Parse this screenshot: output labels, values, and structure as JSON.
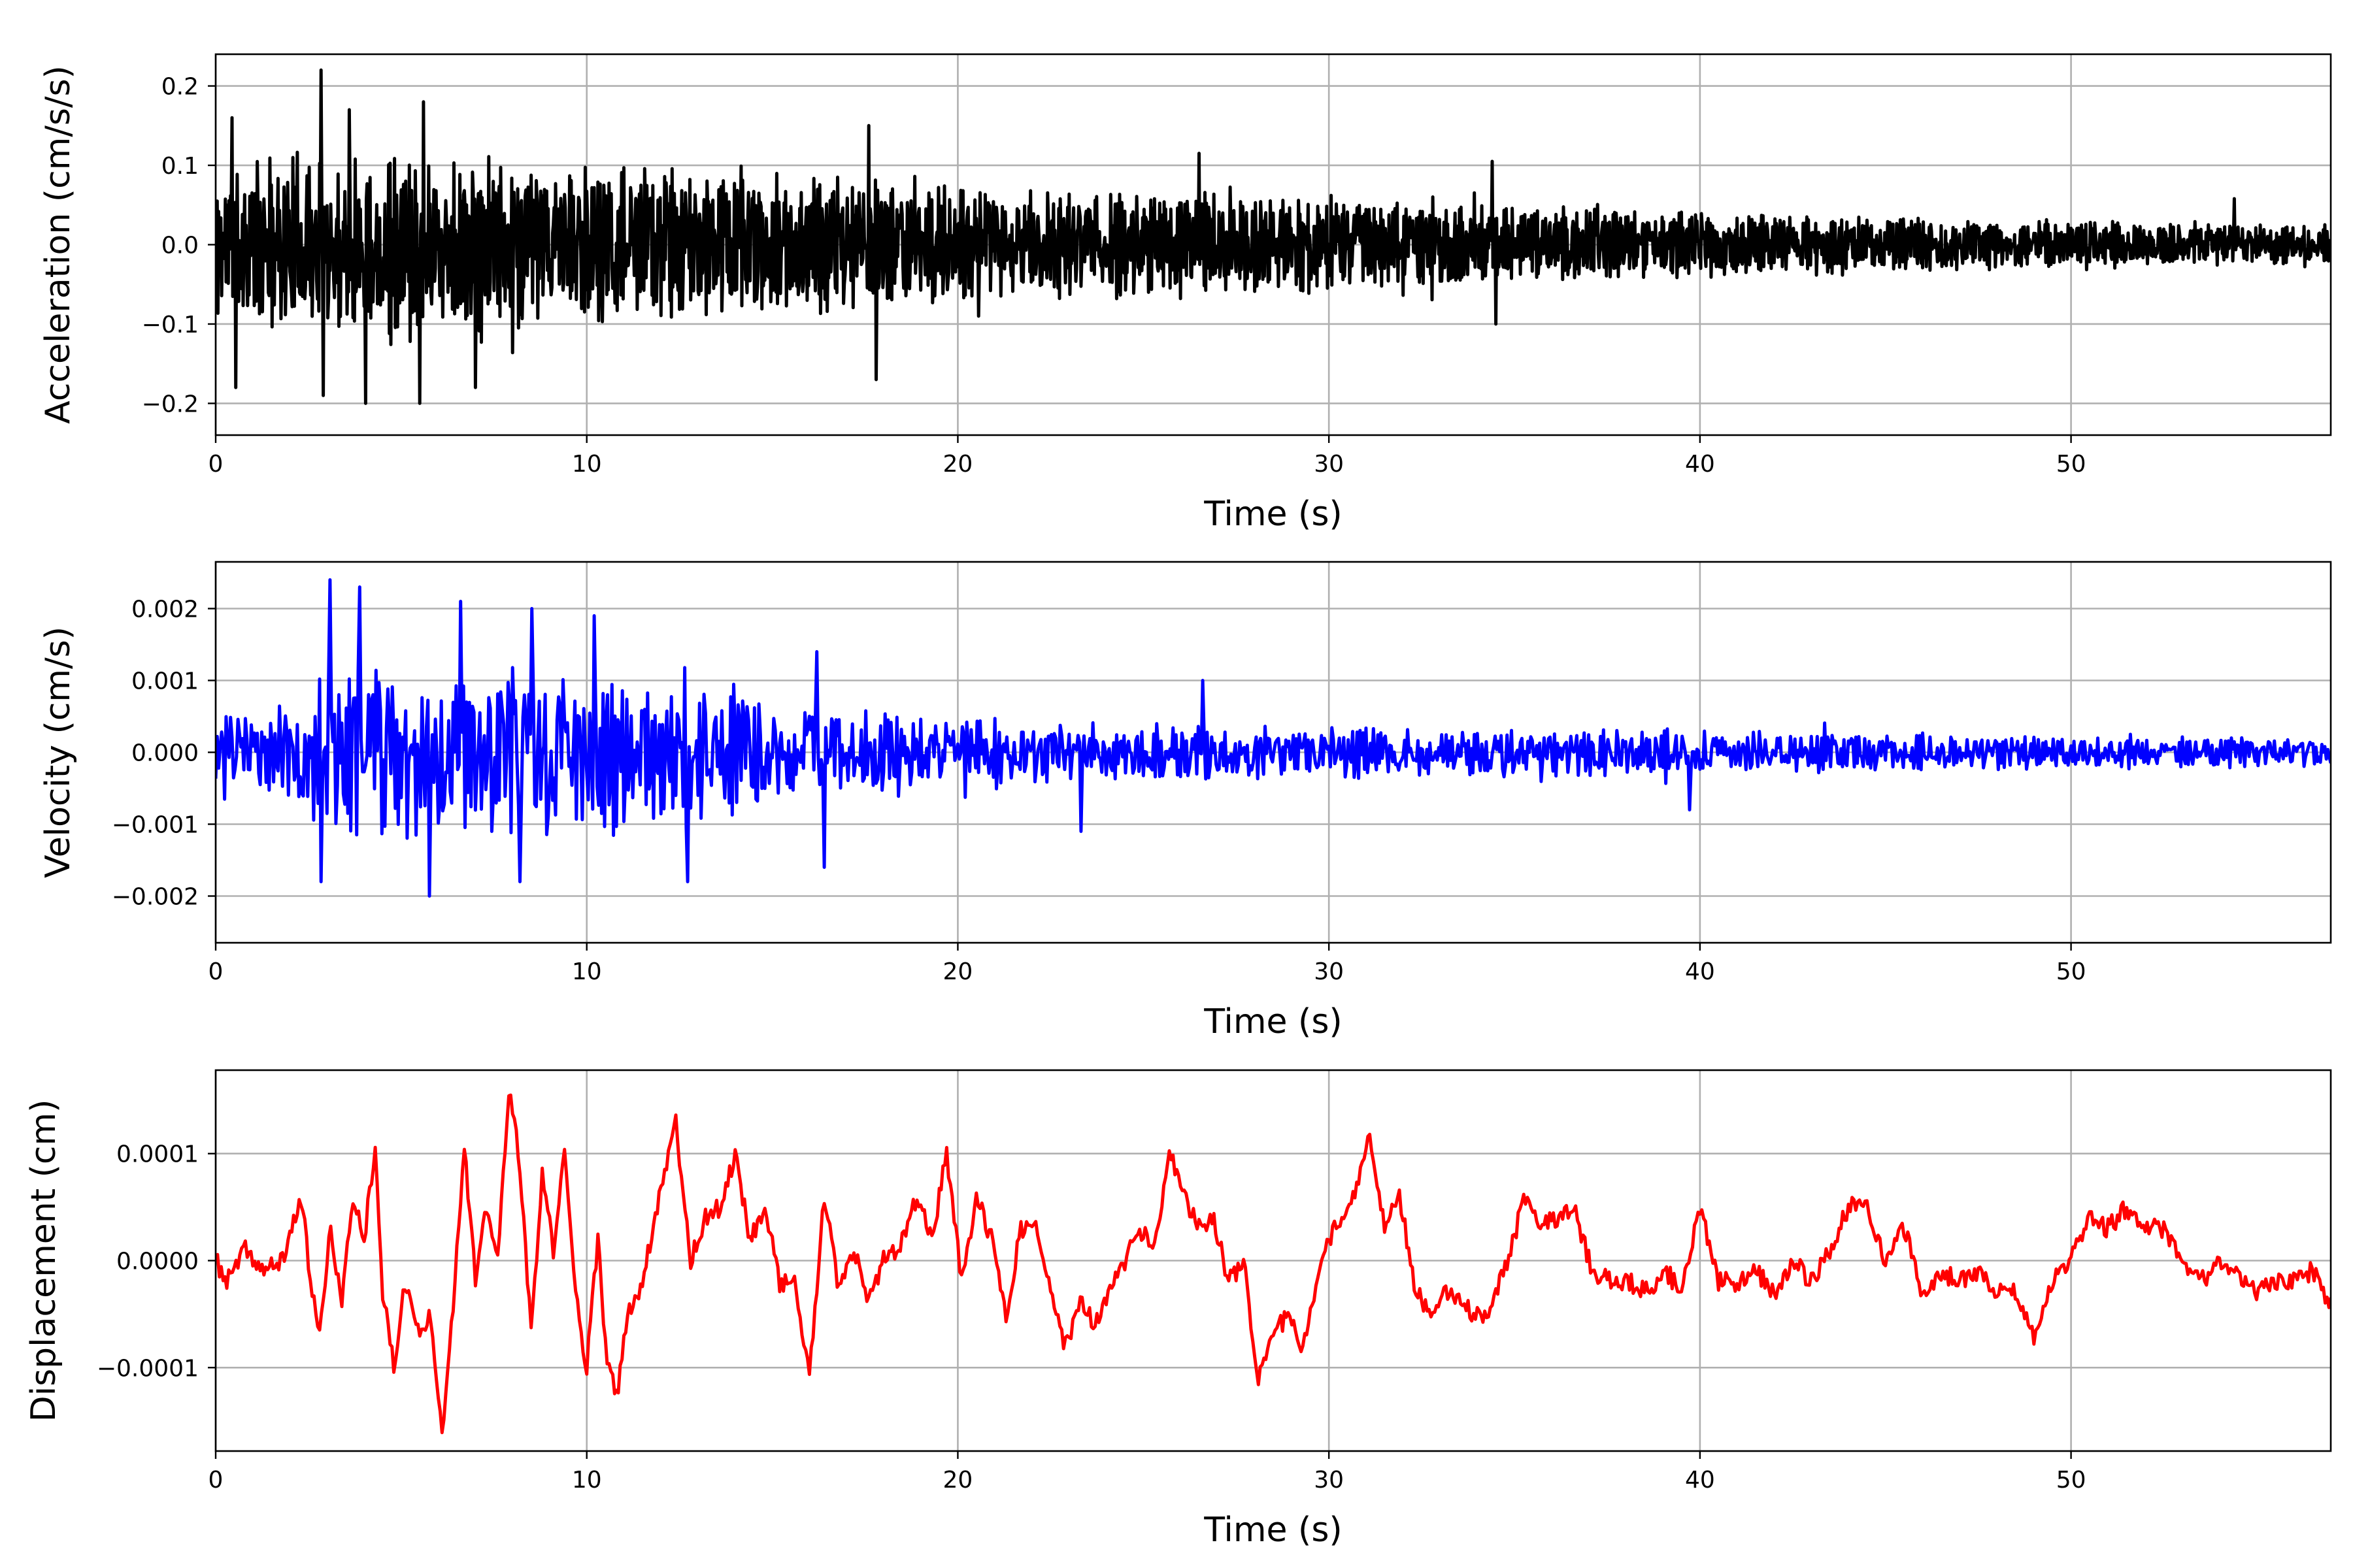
{
  "chart_data": [
    {
      "type": "line",
      "title": "",
      "xlabel": "Time (s)",
      "ylabel": "Acceleration (cm/s/s)",
      "xlim": [
        0,
        57
      ],
      "ylim": [
        -0.24,
        0.24
      ],
      "xticks": [
        0,
        10,
        20,
        30,
        40,
        50
      ],
      "xtick_labels": [
        "0",
        "10",
        "20",
        "30",
        "40",
        "50"
      ],
      "yticks": [
        -0.2,
        -0.1,
        0.0,
        0.1,
        0.2
      ],
      "ytick_labels": [
        "−0.2",
        "−0.1",
        "0.0",
        "0.1",
        "0.2"
      ],
      "grid": true,
      "series": [
        {
          "color": "#000000",
          "seed": 11,
          "sampling_dt": 0.02,
          "envelope": {
            "t": [
              0,
              2,
              4,
              6,
              10,
              15,
              20,
              25,
              30,
              35,
              40,
              45,
              50,
              55,
              57
            ],
            "amp": [
              0.085,
              0.095,
              0.1,
              0.095,
              0.085,
              0.075,
              0.065,
              0.058,
              0.05,
              0.04,
              0.034,
              0.03,
              0.025,
              0.023,
              0.022
            ]
          },
          "peaks": [
            {
              "t": 2.85,
              "v": 0.22
            },
            {
              "t": 3.6,
              "v": 0.17
            },
            {
              "t": 5.6,
              "v": 0.18
            },
            {
              "t": 0.45,
              "v": 0.16
            },
            {
              "t": 17.6,
              "v": 0.15
            },
            {
              "t": 26.5,
              "v": 0.115
            },
            {
              "t": 34.4,
              "v": 0.105
            },
            {
              "t": 54.4,
              "v": 0.058
            },
            {
              "t": 4.05,
              "v": -0.2
            },
            {
              "t": 5.5,
              "v": -0.2
            },
            {
              "t": 2.9,
              "v": -0.19
            },
            {
              "t": 0.55,
              "v": -0.18
            },
            {
              "t": 7.0,
              "v": -0.18
            },
            {
              "t": 17.8,
              "v": -0.17
            },
            {
              "t": 34.5,
              "v": -0.1
            }
          ]
        }
      ]
    },
    {
      "type": "line",
      "title": "",
      "xlabel": "Time (s)",
      "ylabel": "Velocity (cm/s)",
      "xlim": [
        0,
        57
      ],
      "ylim": [
        -0.00265,
        0.00265
      ],
      "xticks": [
        0,
        10,
        20,
        30,
        40,
        50
      ],
      "xtick_labels": [
        "0",
        "10",
        "20",
        "30",
        "40",
        "50"
      ],
      "yticks": [
        -0.002,
        -0.001,
        0.0,
        0.001,
        0.002
      ],
      "ytick_labels": [
        "−0.002",
        "−0.001",
        "0.000",
        "0.001",
        "0.002"
      ],
      "grid": true,
      "series": [
        {
          "color": "#0000ff",
          "seed": 23,
          "sampling_dt": 0.04,
          "envelope": {
            "t": [
              0,
              2,
              3,
              5,
              8,
              10,
              13,
              16,
              20,
              25,
              30,
              35,
              40,
              45,
              50,
              55,
              57
            ],
            "amp": [
              0.00045,
              0.0006,
              0.0011,
              0.0011,
              0.001,
              0.00095,
              0.0008,
              0.0006,
              0.0004,
              0.00035,
              0.0003,
              0.00028,
              0.00025,
              0.00022,
              0.0002,
              0.00018,
              0.00018
            ]
          },
          "peaks": [
            {
              "t": 3.1,
              "v": 0.0024
            },
            {
              "t": 3.9,
              "v": 0.0023
            },
            {
              "t": 6.6,
              "v": 0.0021
            },
            {
              "t": 8.5,
              "v": 0.002
            },
            {
              "t": 10.2,
              "v": 0.0019
            },
            {
              "t": 16.2,
              "v": 0.0014
            },
            {
              "t": 26.6,
              "v": 0.001
            },
            {
              "t": 5.75,
              "v": -0.002
            },
            {
              "t": 2.85,
              "v": -0.0018
            },
            {
              "t": 8.2,
              "v": -0.0018
            },
            {
              "t": 12.7,
              "v": -0.0018
            },
            {
              "t": 16.4,
              "v": -0.0016
            },
            {
              "t": 23.3,
              "v": -0.0011
            },
            {
              "t": 39.7,
              "v": -0.0008
            }
          ]
        }
      ]
    },
    {
      "type": "line",
      "title": "",
      "xlabel": "Time (s)",
      "ylabel": "Displacement (cm)",
      "xlim": [
        0,
        57
      ],
      "ylim": [
        -0.000178,
        0.000178
      ],
      "xticks": [
        0,
        10,
        20,
        30,
        40,
        50
      ],
      "xtick_labels": [
        "0",
        "10",
        "20",
        "30",
        "40",
        "50"
      ],
      "yticks": [
        -0.0001,
        0.0,
        0.0001
      ],
      "ytick_labels": [
        "−0.0001",
        "0.0000",
        "0.0001"
      ],
      "grid": true,
      "series": [
        {
          "color": "#ff0000",
          "points": [
            [
              0,
              0.0
            ],
            [
              0.3,
              -2e-05
            ],
            [
              0.8,
              1e-05
            ],
            [
              1.3,
              -1e-05
            ],
            [
              1.8,
              0.0
            ],
            [
              2.3,
              6e-05
            ],
            [
              2.6,
              -3e-05
            ],
            [
              2.8,
              -7e-05
            ],
            [
              3.1,
              3e-05
            ],
            [
              3.4,
              -4e-05
            ],
            [
              3.7,
              6e-05
            ],
            [
              4.0,
              2e-05
            ],
            [
              4.3,
              0.00011
            ],
            [
              4.5,
              -3e-05
            ],
            [
              4.8,
              -0.0001
            ],
            [
              5.1,
              -2e-05
            ],
            [
              5.5,
              -7e-05
            ],
            [
              5.8,
              -5e-05
            ],
            [
              6.1,
              -0.00016
            ],
            [
              6.4,
              -4e-05
            ],
            [
              6.7,
              0.00011
            ],
            [
              7.0,
              -2e-05
            ],
            [
              7.3,
              5e-05
            ],
            [
              7.6,
              0.0
            ],
            [
              7.9,
              0.00016
            ],
            [
              8.2,
              9e-05
            ],
            [
              8.5,
              -7e-05
            ],
            [
              8.8,
              8e-05
            ],
            [
              9.1,
              1e-05
            ],
            [
              9.4,
              0.0001
            ],
            [
              9.7,
              -3e-05
            ],
            [
              10.0,
              -0.0001
            ],
            [
              10.3,
              2e-05
            ],
            [
              10.5,
              -8e-05
            ],
            [
              10.8,
              -0.00013
            ],
            [
              11.1,
              -5e-05
            ],
            [
              11.5,
              -2e-05
            ],
            [
              12.0,
              7e-05
            ],
            [
              12.4,
              0.00013
            ],
            [
              12.8,
              0.0
            ],
            [
              13.2,
              4e-05
            ],
            [
              13.6,
              5e-05
            ],
            [
              14.0,
              0.0001
            ],
            [
              14.4,
              2e-05
            ],
            [
              14.8,
              5e-05
            ],
            [
              15.2,
              -2e-05
            ],
            [
              15.6,
              -2e-05
            ],
            [
              16.0,
              -0.00011
            ],
            [
              16.4,
              6e-05
            ],
            [
              16.8,
              -3e-05
            ],
            [
              17.2,
              1e-05
            ],
            [
              17.6,
              -4e-05
            ],
            [
              18.0,
              0.0
            ],
            [
              18.4,
              1e-05
            ],
            [
              18.9,
              6e-05
            ],
            [
              19.3,
              2e-05
            ],
            [
              19.7,
              0.0001
            ],
            [
              20.1,
              -2e-05
            ],
            [
              20.5,
              6e-05
            ],
            [
              20.9,
              2e-05
            ],
            [
              21.3,
              -5e-05
            ],
            [
              21.7,
              3e-05
            ],
            [
              22.1,
              3e-05
            ],
            [
              22.5,
              -3e-05
            ],
            [
              22.9,
              -8e-05
            ],
            [
              23.3,
              -4e-05
            ],
            [
              23.7,
              -6e-05
            ],
            [
              24.1,
              -3e-05
            ],
            [
              24.5,
              0.0
            ],
            [
              24.9,
              3e-05
            ],
            [
              25.3,
              1e-05
            ],
            [
              25.7,
              0.0001
            ],
            [
              26.1,
              6e-05
            ],
            [
              26.5,
              3e-05
            ],
            [
              26.9,
              4e-05
            ],
            [
              27.3,
              -2e-05
            ],
            [
              27.7,
              0.0
            ],
            [
              28.1,
              -0.00011
            ],
            [
              28.5,
              -7e-05
            ],
            [
              28.9,
              -5e-05
            ],
            [
              29.3,
              -8e-05
            ],
            [
              29.7,
              -2e-05
            ],
            [
              30.1,
              3e-05
            ],
            [
              30.5,
              4e-05
            ],
            [
              31.1,
              0.00012
            ],
            [
              31.5,
              3e-05
            ],
            [
              31.9,
              6e-05
            ],
            [
              32.3,
              -2e-05
            ],
            [
              32.7,
              -5e-05
            ],
            [
              33.1,
              -3e-05
            ],
            [
              33.5,
              -4e-05
            ],
            [
              33.9,
              -5e-05
            ],
            [
              34.3,
              -5e-05
            ],
            [
              34.8,
              0.0
            ],
            [
              35.3,
              6e-05
            ],
            [
              35.7,
              3e-05
            ],
            [
              36.1,
              4e-05
            ],
            [
              36.6,
              5e-05
            ],
            [
              37.1,
              -1e-05
            ],
            [
              37.6,
              -2e-05
            ],
            [
              38.1,
              -2e-05
            ],
            [
              38.6,
              -3e-05
            ],
            [
              39.1,
              -1e-05
            ],
            [
              39.5,
              -3e-05
            ],
            [
              40.0,
              5e-05
            ],
            [
              40.5,
              -2e-05
            ],
            [
              41.0,
              -2e-05
            ],
            [
              41.5,
              -1e-05
            ],
            [
              42.0,
              -3e-05
            ],
            [
              42.5,
              0.0
            ],
            [
              43.0,
              -2e-05
            ],
            [
              43.5,
              1e-05
            ],
            [
              44.0,
              5e-05
            ],
            [
              44.5,
              5e-05
            ],
            [
              45.0,
              0.0
            ],
            [
              45.5,
              3e-05
            ],
            [
              46.0,
              -3e-05
            ],
            [
              46.5,
              -1e-05
            ],
            [
              47.0,
              -2e-05
            ],
            [
              47.5,
              -1e-05
            ],
            [
              48.0,
              -3e-05
            ],
            [
              48.5,
              -3e-05
            ],
            [
              49.0,
              -7e-05
            ],
            [
              49.5,
              -2e-05
            ],
            [
              50.0,
              0.0
            ],
            [
              50.5,
              4e-05
            ],
            [
              51.0,
              3e-05
            ],
            [
              51.5,
              5e-05
            ],
            [
              52.0,
              3e-05
            ],
            [
              52.5,
              3e-05
            ],
            [
              53.0,
              0.0
            ],
            [
              53.5,
              -2e-05
            ],
            [
              54.0,
              0.0
            ],
            [
              54.5,
              -1e-05
            ],
            [
              55.0,
              -3e-05
            ],
            [
              55.5,
              -2e-05
            ],
            [
              56.0,
              -2e-05
            ],
            [
              56.5,
              -1e-05
            ],
            [
              57.0,
              -4e-05
            ]
          ],
          "jitter": 9e-06,
          "seed": 37
        }
      ]
    }
  ]
}
